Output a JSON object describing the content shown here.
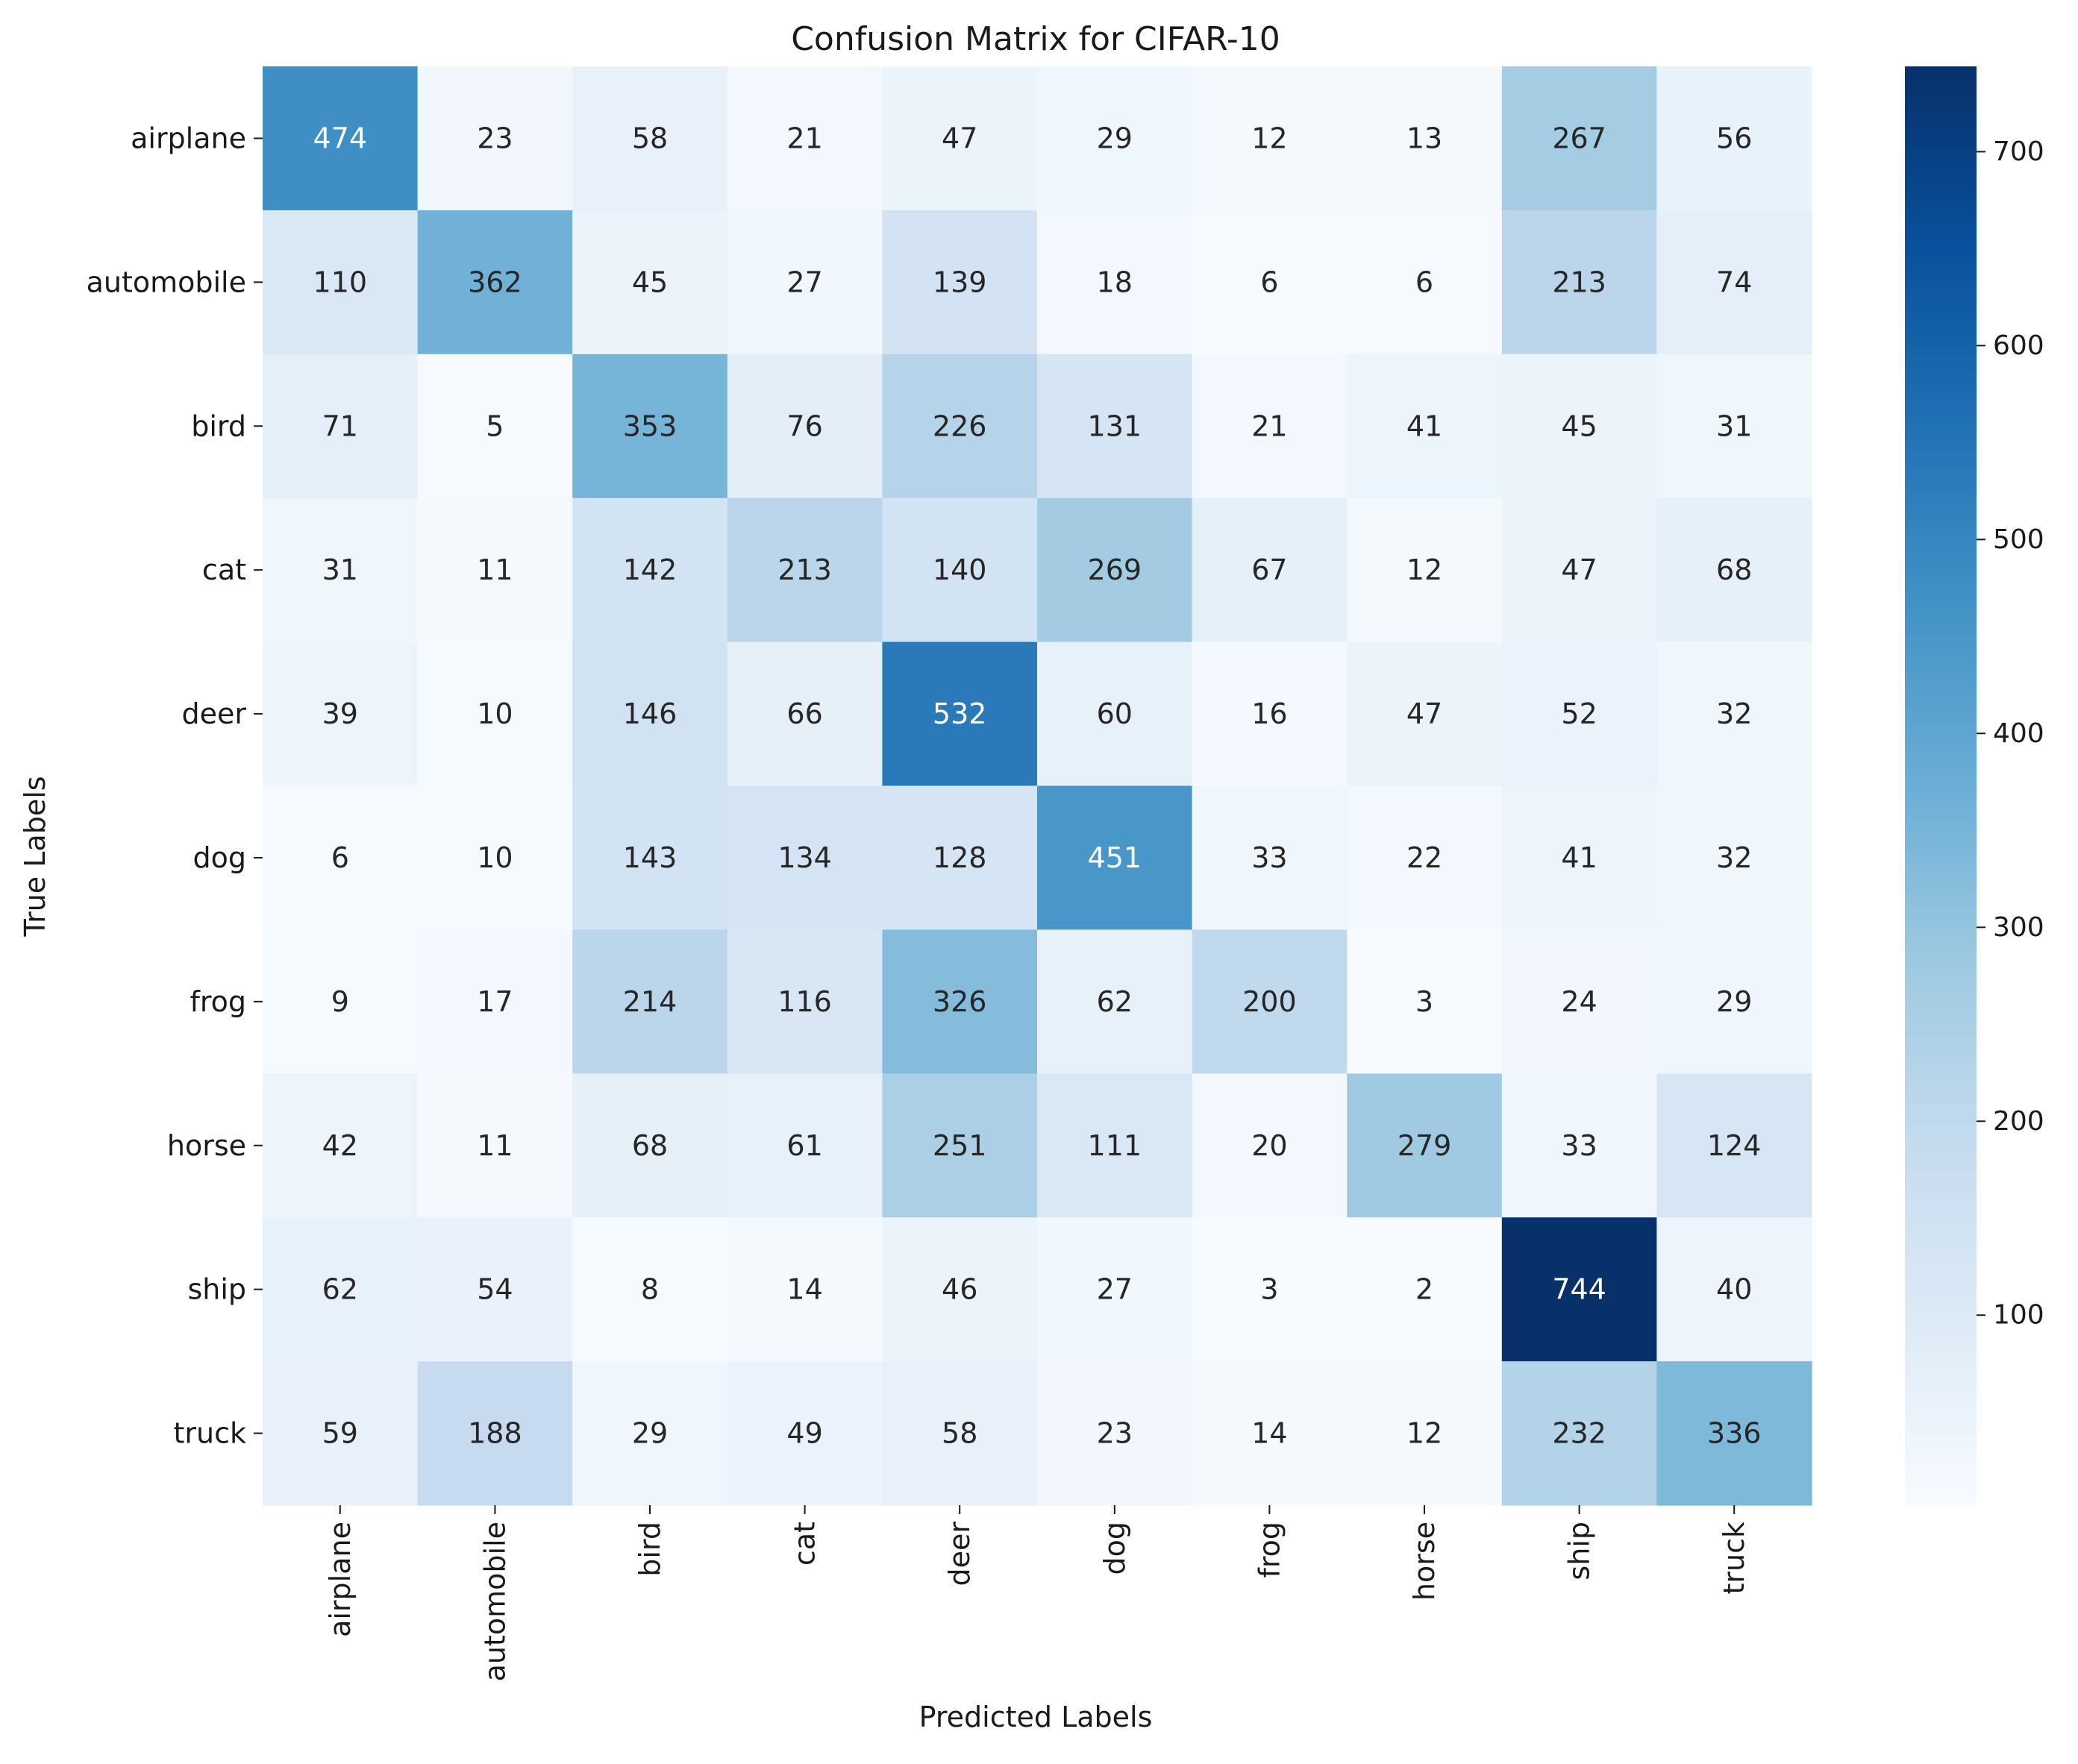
{
  "chart_data": {
    "type": "heatmap",
    "title": "Confusion Matrix for CIFAR-10",
    "xlabel": "Predicted Labels",
    "ylabel": "True Labels",
    "x_categories": [
      "airplane",
      "automobile",
      "bird",
      "cat",
      "deer",
      "dog",
      "frog",
      "horse",
      "ship",
      "truck"
    ],
    "y_categories": [
      "airplane",
      "automobile",
      "bird",
      "cat",
      "deer",
      "dog",
      "frog",
      "horse",
      "ship",
      "truck"
    ],
    "values": [
      [
        474,
        23,
        58,
        21,
        47,
        29,
        12,
        13,
        267,
        56
      ],
      [
        110,
        362,
        45,
        27,
        139,
        18,
        6,
        6,
        213,
        74
      ],
      [
        71,
        5,
        353,
        76,
        226,
        131,
        21,
        41,
        45,
        31
      ],
      [
        31,
        11,
        142,
        213,
        140,
        269,
        67,
        12,
        47,
        68
      ],
      [
        39,
        10,
        146,
        66,
        532,
        60,
        16,
        47,
        52,
        32
      ],
      [
        6,
        10,
        143,
        134,
        128,
        451,
        33,
        22,
        41,
        32
      ],
      [
        9,
        17,
        214,
        116,
        326,
        62,
        200,
        3,
        24,
        29
      ],
      [
        42,
        11,
        68,
        61,
        251,
        111,
        20,
        279,
        33,
        124
      ],
      [
        62,
        54,
        8,
        14,
        46,
        27,
        3,
        2,
        744,
        40
      ],
      [
        59,
        188,
        29,
        49,
        58,
        23,
        14,
        12,
        232,
        336
      ]
    ],
    "colormap": "Blues",
    "color_range": [
      2,
      744
    ],
    "colorbar_ticks": [
      100,
      200,
      300,
      400,
      500,
      600,
      700
    ],
    "annotations_shown": true,
    "grid": false
  }
}
